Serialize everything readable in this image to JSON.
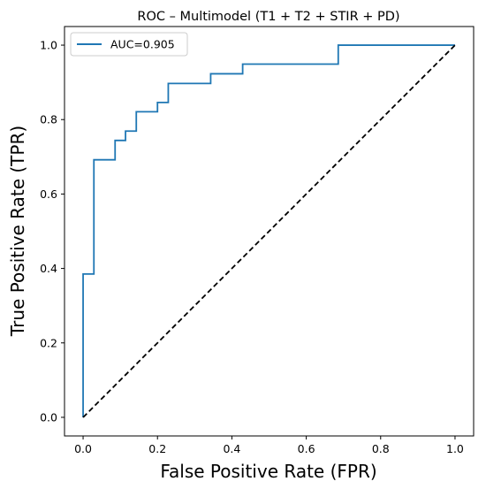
{
  "chart_data": {
    "type": "line",
    "title": "ROC – Multimodel (T1 + T2 + STIR + PD)",
    "xlabel": "False Positive Rate (FPR)",
    "ylabel": "True Positive Rate (TPR)",
    "xlim": [
      -0.05,
      1.05
    ],
    "ylim": [
      -0.05,
      1.05
    ],
    "xticks": [
      0.0,
      0.2,
      0.4,
      0.6,
      0.8,
      1.0
    ],
    "yticks": [
      0.0,
      0.2,
      0.4,
      0.6,
      0.8,
      1.0
    ],
    "xtick_labels": [
      "0.0",
      "0.2",
      "0.4",
      "0.6",
      "0.8",
      "1.0"
    ],
    "ytick_labels": [
      "0.0",
      "0.2",
      "0.4",
      "0.6",
      "0.8",
      "1.0"
    ],
    "grid": false,
    "legend_position": "top-left",
    "series": [
      {
        "name": "AUC=0.905",
        "color": "#1f77b4",
        "style": "solid",
        "x": [
          0.0,
          0.0,
          0.029,
          0.029,
          0.086,
          0.086,
          0.114,
          0.114,
          0.143,
          0.143,
          0.2,
          0.2,
          0.229,
          0.229,
          0.343,
          0.343,
          0.429,
          0.429,
          0.686,
          0.686,
          1.0
        ],
        "y": [
          0.0,
          0.385,
          0.385,
          0.692,
          0.692,
          0.744,
          0.744,
          0.769,
          0.769,
          0.821,
          0.821,
          0.846,
          0.846,
          0.897,
          0.897,
          0.923,
          0.923,
          0.949,
          0.949,
          1.0,
          1.0
        ]
      },
      {
        "name": "",
        "color": "#000000",
        "style": "dashed",
        "x": [
          0.0,
          1.0
        ],
        "y": [
          0.0,
          1.0
        ]
      }
    ]
  }
}
